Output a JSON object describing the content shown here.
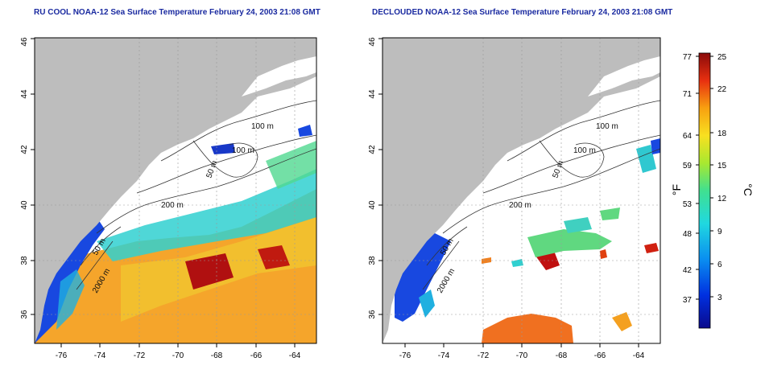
{
  "titles": {
    "left": "RU COOL NOAA-12 Sea Surface Temperature February 24, 2003 21:08 GMT",
    "right": "DECLOUDED NOAA-12 Sea Surface Temperature February 24, 2003 21:08 GMT"
  },
  "map": {
    "lat_ticks": [
      "36",
      "38",
      "40",
      "42",
      "44",
      "46"
    ],
    "lon_ticks": [
      "-76",
      "-74",
      "-72",
      "-70",
      "-68",
      "-66",
      "-64"
    ],
    "contours_left": [
      "100 m",
      "100 m",
      "50 m",
      "200 m",
      "50 m",
      "2000 m"
    ],
    "contours_right": [
      "100 m",
      "100 m",
      "50 m",
      "200 m",
      "50 m",
      "2000 m"
    ]
  },
  "colorbar": {
    "f_ticks": [
      "77",
      "71",
      "64",
      "59",
      "53",
      "48",
      "42",
      "37"
    ],
    "c_ticks": [
      "25",
      "22",
      "18",
      "15",
      "12",
      "9",
      "6",
      "3"
    ],
    "f_unit": "°F",
    "c_unit": "°C"
  },
  "colors": {
    "land": "#bdbdbd",
    "frame": "#000000",
    "grid": "#9a9a9a"
  }
}
